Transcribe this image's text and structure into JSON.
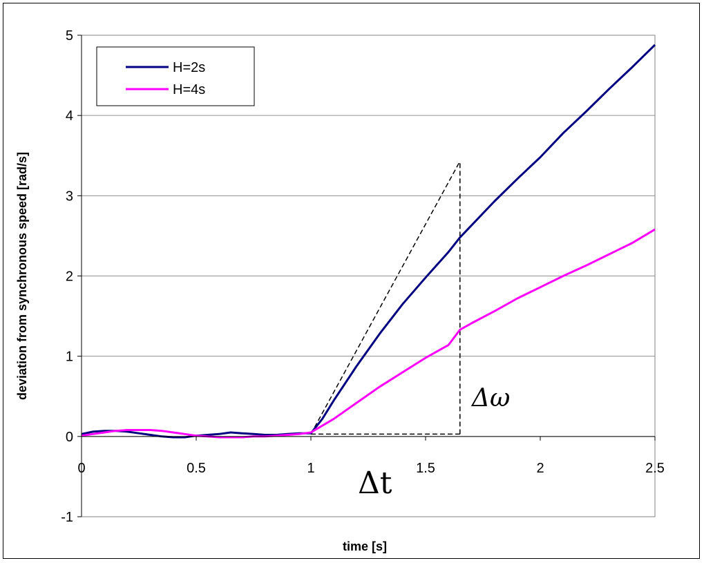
{
  "chart_data": {
    "type": "line",
    "title": "",
    "xlabel": "time  [s]",
    "ylabel": "deviation from synchronous speed [rad/s]",
    "xlim": [
      0,
      2.5
    ],
    "ylim": [
      -1,
      5
    ],
    "x_ticks": [
      "0",
      "0.5",
      "1",
      "1.5",
      "2",
      "2.5"
    ],
    "y_ticks": [
      "-1",
      "0",
      "1",
      "2",
      "3",
      "4",
      "5"
    ],
    "grid": "horizontal",
    "legend_position": "top-left",
    "series": [
      {
        "name": "H=2s",
        "color": "#000080",
        "x": [
          0,
          0.05,
          0.1,
          0.15,
          0.2,
          0.25,
          0.3,
          0.35,
          0.4,
          0.45,
          0.5,
          0.55,
          0.6,
          0.65,
          0.7,
          0.75,
          0.8,
          0.85,
          0.9,
          0.95,
          1.0,
          1.05,
          1.1,
          1.2,
          1.3,
          1.4,
          1.5,
          1.6,
          1.65,
          1.7,
          1.8,
          1.9,
          2.0,
          2.1,
          2.2,
          2.3,
          2.4,
          2.5
        ],
        "values": [
          0.03,
          0.06,
          0.07,
          0.07,
          0.06,
          0.04,
          0.02,
          0.0,
          -0.01,
          -0.01,
          0.01,
          0.02,
          0.03,
          0.05,
          0.04,
          0.03,
          0.02,
          0.02,
          0.03,
          0.04,
          0.04,
          0.22,
          0.45,
          0.88,
          1.28,
          1.65,
          1.98,
          2.3,
          2.48,
          2.63,
          2.93,
          3.21,
          3.48,
          3.78,
          4.05,
          4.33,
          4.6,
          4.88
        ]
      },
      {
        "name": "H=4s",
        "color": "#FF00FF",
        "x": [
          0,
          0.05,
          0.1,
          0.15,
          0.2,
          0.25,
          0.3,
          0.35,
          0.4,
          0.45,
          0.5,
          0.55,
          0.6,
          0.65,
          0.7,
          0.75,
          0.8,
          0.85,
          0.9,
          0.95,
          1.0,
          1.1,
          1.2,
          1.3,
          1.4,
          1.5,
          1.6,
          1.65,
          1.7,
          1.8,
          1.9,
          2.0,
          2.1,
          2.2,
          2.3,
          2.4,
          2.5
        ],
        "values": [
          0.01,
          0.03,
          0.05,
          0.07,
          0.08,
          0.08,
          0.08,
          0.07,
          0.05,
          0.03,
          0.01,
          0.0,
          -0.01,
          -0.01,
          -0.01,
          0.0,
          0.0,
          0.01,
          0.02,
          0.03,
          0.05,
          0.22,
          0.42,
          0.62,
          0.8,
          0.98,
          1.14,
          1.33,
          1.41,
          1.56,
          1.72,
          1.86,
          2.0,
          2.13,
          2.27,
          2.41,
          2.58
        ]
      }
    ],
    "annotations": {
      "delta_t_label": "Δt",
      "delta_omega_label": "Δω",
      "tangent_line": {
        "x": [
          1.0,
          1.65
        ],
        "y": [
          0.03,
          3.43
        ]
      },
      "horizontal_line": {
        "x": [
          1.0,
          1.65
        ],
        "y": [
          0.03,
          0.03
        ]
      },
      "vertical_line": {
        "x": [
          1.65,
          1.65
        ],
        "y": [
          0.03,
          3.43
        ]
      }
    }
  }
}
